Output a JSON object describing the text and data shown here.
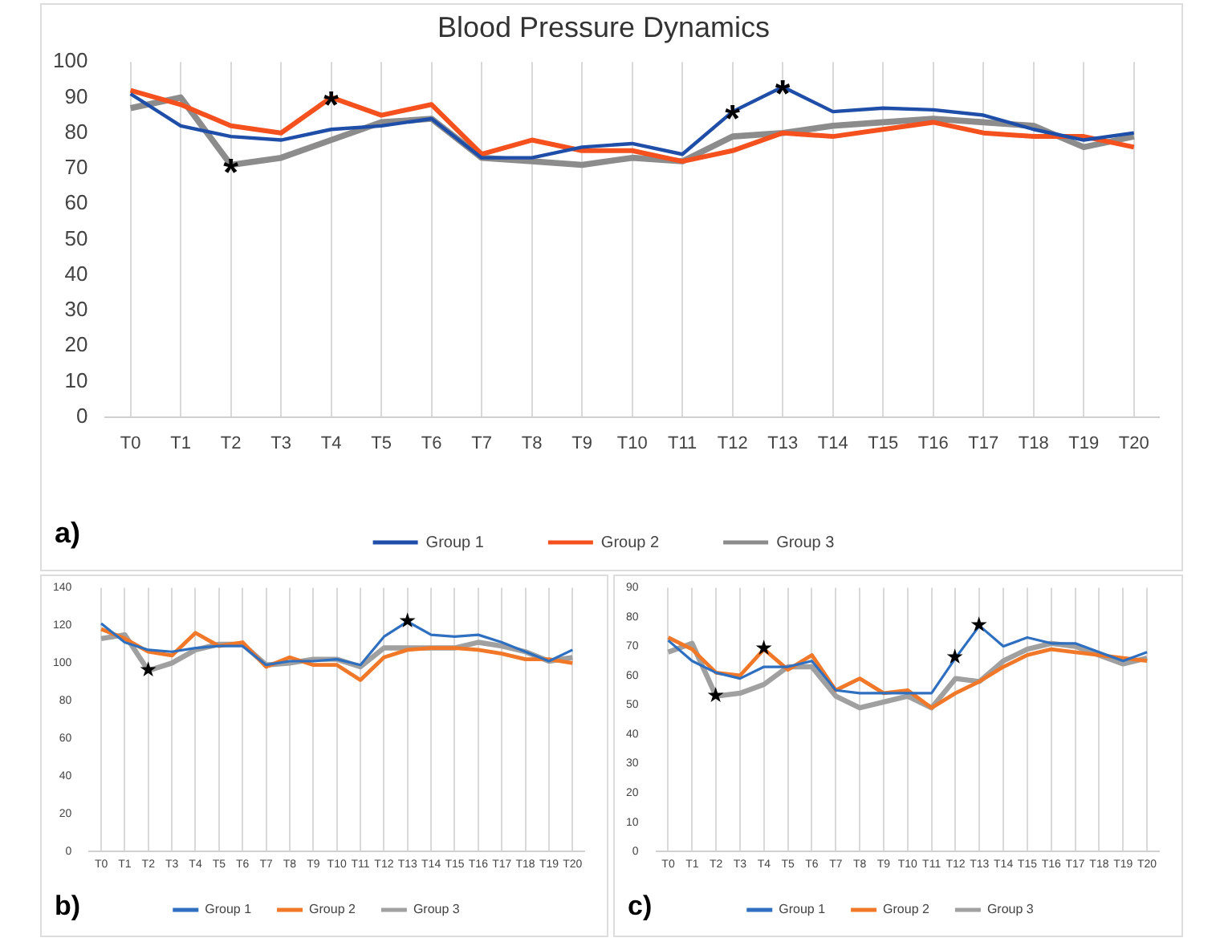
{
  "chart_data": [
    {
      "type": "line",
      "title": "Blood Pressure Dynamics",
      "categories": [
        "T0",
        "T1",
        "T2",
        "T3",
        "T4",
        "T5",
        "T6",
        "T7",
        "T8",
        "T9",
        "T10",
        "T11",
        "T12",
        "T13",
        "T14",
        "T15",
        "T16",
        "T17",
        "T18",
        "T19",
        "T20"
      ],
      "series": [
        {
          "name": "Group 1",
          "color": "#1f4ea8",
          "values": [
            91,
            82,
            79,
            78,
            81,
            82,
            84,
            73,
            73,
            76,
            77,
            74,
            86,
            93,
            86,
            87,
            86.5,
            85,
            81,
            78,
            80
          ]
        },
        {
          "name": "Group 2",
          "color": "#f4511e",
          "values": [
            92,
            88,
            82,
            80,
            90,
            85,
            88,
            74,
            78,
            75,
            75,
            72,
            75,
            80,
            79,
            81,
            83,
            80,
            79,
            79,
            76
          ]
        },
        {
          "name": "Group 3",
          "color": "#8c8c8c",
          "values": [
            87,
            90,
            71,
            73,
            78,
            83,
            84,
            73,
            72,
            71,
            73,
            72,
            79,
            80,
            82,
            83,
            84,
            83,
            82,
            76,
            79
          ]
        }
      ],
      "ylim": [
        0,
        100
      ],
      "yticks": [
        0,
        10,
        20,
        30,
        40,
        50,
        60,
        70,
        80,
        90,
        100
      ],
      "grid": "x",
      "legend": "bottom",
      "marker": "none",
      "line_style": "solid",
      "annotations": [
        "a)",
        {
          "text": "*",
          "x": "T2",
          "y": 71
        },
        {
          "text": "*",
          "x": "T4",
          "y": 90
        },
        {
          "text": "*",
          "x": "T12",
          "y": 86
        },
        {
          "text": "*",
          "x": "T13",
          "y": 93
        }
      ]
    },
    {
      "type": "line",
      "categories": [
        "T0",
        "T1",
        "T2",
        "T3",
        "T4",
        "T5",
        "T6",
        "T7",
        "T8",
        "T9",
        "T10",
        "T11",
        "T12",
        "T13",
        "T14",
        "T15",
        "T16",
        "T17",
        "T18",
        "T19",
        "T20"
      ],
      "series": [
        {
          "name": "Group 1",
          "color": "#2e6fc0",
          "values": [
            121,
            111,
            107,
            106,
            108,
            109,
            109,
            99,
            101,
            101,
            102,
            99,
            114,
            122,
            115,
            114,
            115,
            111,
            106,
            101,
            107
          ]
        },
        {
          "name": "Group 2",
          "color": "#f07828",
          "values": [
            118,
            113,
            106,
            104,
            116,
            109,
            111,
            98,
            103,
            99,
            99,
            91,
            103,
            107,
            108,
            108,
            107,
            105,
            102,
            102,
            100
          ]
        },
        {
          "name": "Group 3",
          "color": "#a0a0a0",
          "values": [
            113,
            115,
            96,
            100,
            107,
            110,
            110,
            99,
            100,
            102,
            102,
            98,
            108,
            108,
            108,
            108,
            111,
            109,
            106,
            101,
            103
          ]
        }
      ],
      "ylim": [
        0,
        140
      ],
      "yticks": [
        0,
        20,
        40,
        60,
        80,
        100,
        120,
        140
      ],
      "grid": "x",
      "legend": "bottom",
      "marker": "none",
      "line_style": "solid",
      "annotations": [
        "b)",
        {
          "text": "★",
          "x": "T2",
          "y": 96
        },
        {
          "text": "★",
          "x": "T13",
          "y": 122
        }
      ]
    },
    {
      "type": "line",
      "categories": [
        "T0",
        "T1",
        "T2",
        "T3",
        "T4",
        "T5",
        "T6",
        "T7",
        "T8",
        "T9",
        "T10",
        "T11",
        "T12",
        "T13",
        "T14",
        "T15",
        "T16",
        "T17",
        "T18",
        "T19",
        "T20"
      ],
      "series": [
        {
          "name": "Group 1",
          "color": "#2e6fc0",
          "values": [
            72,
            65,
            61,
            59,
            63,
            63,
            65,
            55,
            54,
            54,
            54,
            54,
            66,
            77,
            70,
            73,
            71,
            71,
            68,
            65,
            68
          ]
        },
        {
          "name": "Group 2",
          "color": "#f07828",
          "values": [
            73,
            69,
            61,
            60,
            69,
            62,
            67,
            55,
            59,
            54,
            55,
            49,
            54,
            58,
            63,
            67,
            69,
            68,
            67,
            66,
            65
          ]
        },
        {
          "name": "Group 3",
          "color": "#a0a0a0",
          "values": [
            68,
            71,
            53,
            54,
            57,
            63,
            63,
            53,
            49,
            51,
            53,
            49,
            59,
            58,
            65,
            69,
            71,
            70,
            67,
            64,
            66
          ]
        }
      ],
      "ylim": [
        0,
        90
      ],
      "yticks": [
        0,
        10,
        20,
        30,
        40,
        50,
        60,
        70,
        80,
        90
      ],
      "grid": "x",
      "legend": "bottom",
      "marker": "none",
      "line_style": "solid",
      "annotations": [
        "c)",
        {
          "text": "★",
          "x": "T2",
          "y": 53
        },
        {
          "text": "★",
          "x": "T4",
          "y": 69
        },
        {
          "text": "★",
          "x": "T12",
          "y": 66
        },
        {
          "text": "★",
          "x": "T13",
          "y": 77
        }
      ]
    }
  ]
}
